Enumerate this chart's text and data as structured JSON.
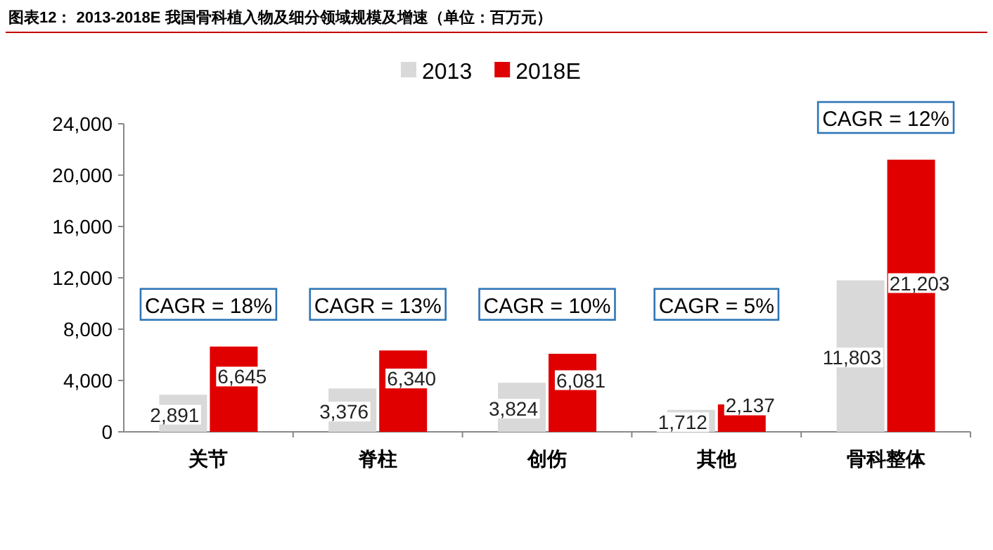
{
  "chart_data": {
    "type": "bar",
    "title": "图表12：  2013-2018E 我国骨科植入物及细分领域规模及增速（单位：百万元）",
    "categories": [
      "关节",
      "脊柱",
      "创伤",
      "其他",
      "骨科整体"
    ],
    "series": [
      {
        "name": "2013",
        "color": "#d9d9d9",
        "values": [
          2891,
          3376,
          3824,
          1712,
          11803
        ],
        "value_labels": [
          "2,891",
          "3,376",
          "3,824",
          "1,712",
          "11,803"
        ]
      },
      {
        "name": "2018E",
        "color": "#e00000",
        "values": [
          6645,
          6340,
          6081,
          2137,
          21203
        ],
        "value_labels": [
          "6,645",
          "6,340",
          "6,081",
          "2,137",
          "21,203"
        ]
      }
    ],
    "ylim": [
      0,
      24000
    ],
    "yticks": [
      {
        "value": 0,
        "label": "0"
      },
      {
        "value": 4000,
        "label": "4,000"
      },
      {
        "value": 8000,
        "label": "8,000"
      },
      {
        "value": 12000,
        "label": "12,000"
      },
      {
        "value": 16000,
        "label": "16,000"
      },
      {
        "value": 20000,
        "label": "20,000"
      },
      {
        "value": 24000,
        "label": "24,000"
      }
    ],
    "legend": "top",
    "annotations": [
      "CAGR = 18%",
      "CAGR = 13%",
      "CAGR = 10%",
      "CAGR = 5%",
      "CAGR = 12%"
    ]
  }
}
